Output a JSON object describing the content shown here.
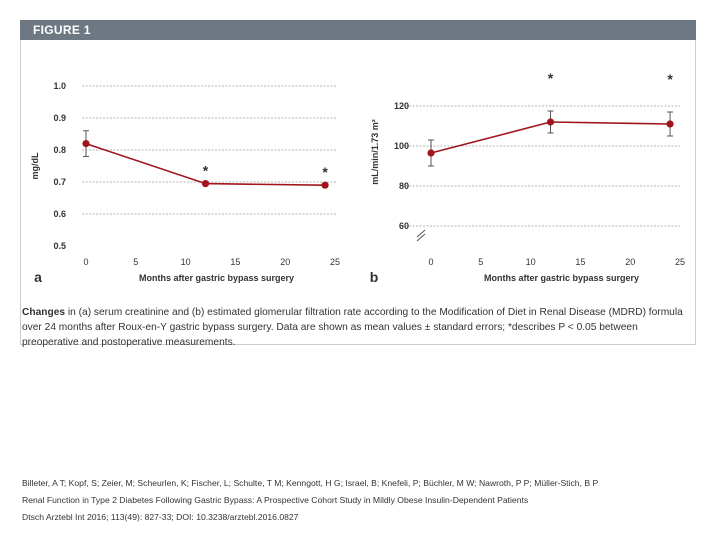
{
  "figure": {
    "label": "FIGURE 1",
    "caption_bold": "Changes",
    "caption_text": "in (a) serum creatinine and (b) estimated glomerular filtration rate according to the Modification of Diet in Renal Disease (MDRD) formula over 24 months after Roux-en-Y gastric bypass surgery. Data are shown as mean values ± standard errors; *describes P < 0.05 between preoperative and postoperative measurements.",
    "header_color": "#6e7882"
  },
  "citation": {
    "authors": "Billeter, A T; Kopf, S; Zeier, M; Scheurlen, K; Fischer, L; Schulte, T M; Kenngott, H G; Israel, B; Knefeli, P; Büchler, M W; Nawroth, P P; Müller-Stich, B P",
    "title": "Renal Function in Type 2 Diabetes Following Gastric Bypass: A Prospective Cohort Study in Mildly Obese Insulin-Dependent Patients",
    "journal": "Dtsch Arztebl Int 2016; 113(49): 827-33; DOI: 10.3238/arztebl.2016.0827"
  },
  "chart_data": [
    {
      "type": "line",
      "panel_label": "a",
      "title": "",
      "xlabel": "Months after gastric bypass surgery",
      "ylabel": "mg/dL",
      "xlim": [
        0,
        25
      ],
      "ylim": [
        0.5,
        1.0
      ],
      "xticks": [
        "0",
        "5",
        "10",
        "15",
        "20",
        "25"
      ],
      "yticks": [
        "1.0",
        "0.9",
        "0.8",
        "0.7",
        "0.6",
        "0.5"
      ],
      "x": [
        0,
        12,
        24
      ],
      "values": [
        0.82,
        0.695,
        0.69
      ],
      "errors": [
        0.04,
        0.005,
        0.005
      ],
      "significance": [
        "",
        "*",
        "*"
      ],
      "grid": true,
      "series_color": "#a0151b"
    },
    {
      "type": "line",
      "panel_label": "b",
      "title": "",
      "xlabel": "Months after gastric bypass surgery",
      "ylabel": "mL/min/1.73 m²",
      "xlim": [
        0,
        25
      ],
      "ylim": [
        60,
        120
      ],
      "xticks": [
        "0",
        "5",
        "10",
        "15",
        "20",
        "25"
      ],
      "yticks": [
        "120",
        "100",
        "80",
        "60"
      ],
      "x": [
        0,
        12,
        24
      ],
      "values": [
        96.5,
        112,
        111
      ],
      "errors": [
        6.5,
        5.5,
        6
      ],
      "significance": [
        "",
        "*",
        "*"
      ],
      "grid": true,
      "axis_break": true,
      "series_color": "#a0151b"
    }
  ]
}
